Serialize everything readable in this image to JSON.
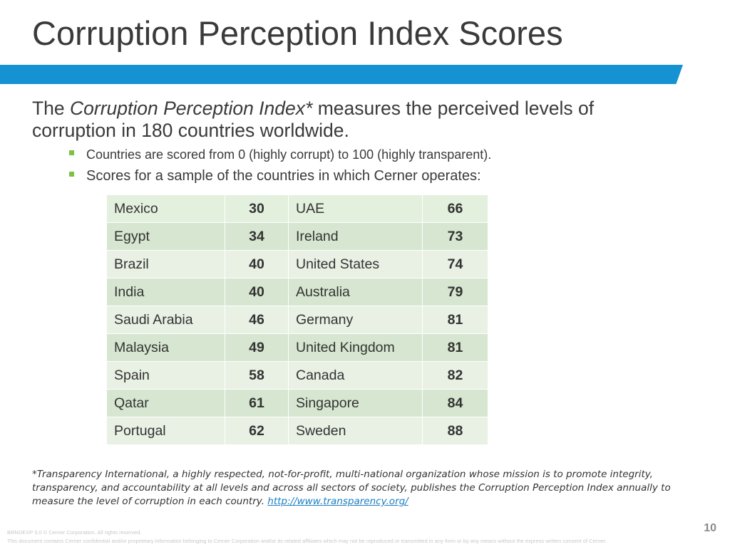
{
  "slide": {
    "title": "Corruption Perception Index Scores",
    "page_number": "10"
  },
  "intro": {
    "part1": "The ",
    "italic": "Corruption Perception Index*",
    "part2": " measures the perceived levels of corruption in 180 countries worldwide."
  },
  "bullets": [
    "Countries are scored from 0 (highly corrupt) to 100 (highly transparent).",
    "Scores for a sample of the countries in which Cerner operates:"
  ],
  "table": {
    "rows": [
      {
        "country_a": "Mexico",
        "score_a": "30",
        "country_b": "UAE",
        "score_b": "66"
      },
      {
        "country_a": "Egypt",
        "score_a": "34",
        "country_b": "Ireland",
        "score_b": "73"
      },
      {
        "country_a": "Brazil",
        "score_a": "40",
        "country_b": "United States",
        "score_b": "74"
      },
      {
        "country_a": "India",
        "score_a": "40",
        "country_b": "Australia",
        "score_b": "79"
      },
      {
        "country_a": "Saudi Arabia",
        "score_a": "46",
        "country_b": "Germany",
        "score_b": "81"
      },
      {
        "country_a": "Malaysia",
        "score_a": "49",
        "country_b": "United Kingdom",
        "score_b": "81"
      },
      {
        "country_a": "Spain",
        "score_a": "58",
        "country_b": "Canada",
        "score_b": "82"
      },
      {
        "country_a": "Qatar",
        "score_a": "61",
        "country_b": "Singapore",
        "score_b": "84"
      },
      {
        "country_a": "Portugal",
        "score_a": "62",
        "country_b": "Sweden",
        "score_b": "88"
      }
    ]
  },
  "footnote": {
    "text": "*Transparency International, a highly respected, not-for-profit, multi-national organization whose mission is to promote integrity, transparency, and accountability at all levels and across all sectors of society, publishes the Corruption Perception Index annually to measure the level of corruption in each country. ",
    "link_text": "http://www.transparency.org/"
  },
  "legal": {
    "line1": "BRNDEXP 3.0  ©  Cerner Corporation.  All rights reserved.",
    "line2": "This document contains Cerner confidential and/or proprietary information belonging to Cerner Corporation and/or its related affiliates which may not be reproduced or transmitted in any form or by any means without the express written consent of Cerner."
  },
  "colors": {
    "accent_bar": "#1592d1",
    "bullet": "#7dc242",
    "row_light": "#e8f1e4",
    "row_dark": "#d6e6d0",
    "link": "#1a7fc4"
  }
}
